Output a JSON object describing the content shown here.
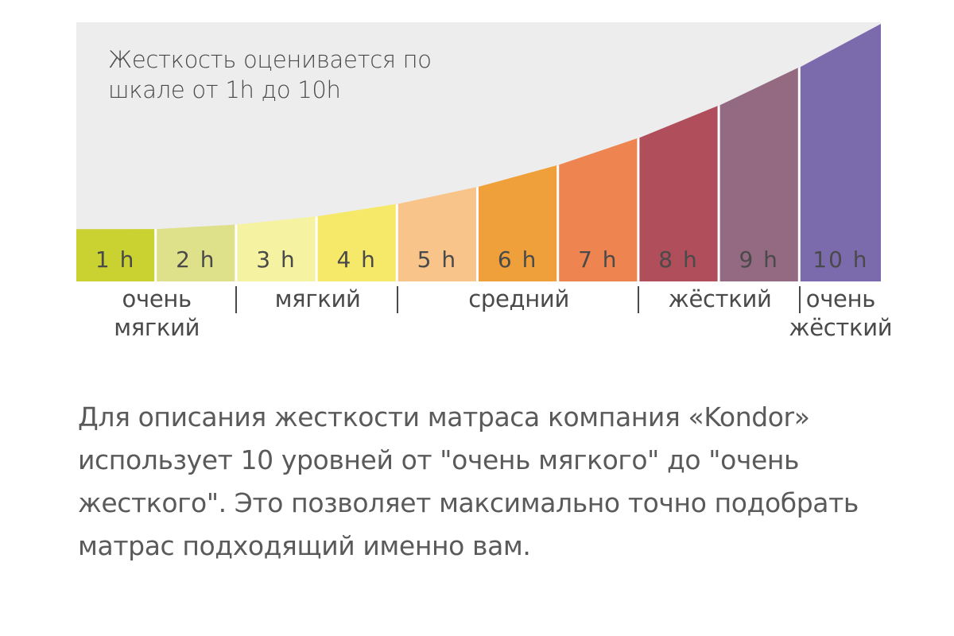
{
  "chart_data": {
    "type": "bar",
    "title_lines": [
      "Жесткость оценивается по",
      "шкале от 1h до 10h"
    ],
    "categories": [
      "1 h",
      "2 h",
      "3 h",
      "4 h",
      "5 h",
      "6 h",
      "7 h",
      "8 h",
      "9 h",
      "10 h"
    ],
    "values": [
      1,
      2,
      3,
      4,
      5,
      6,
      7,
      8,
      9,
      10
    ],
    "colors": [
      "#c9d230",
      "#dfe08a",
      "#f5f2a2",
      "#f6e96a",
      "#f8c489",
      "#f0a03a",
      "#ee844f",
      "#b04e5b",
      "#936a82",
      "#7b6bad"
    ],
    "curve_fill": "#ededed",
    "tick_text_color": "#4a4a4a",
    "groups": [
      {
        "label_lines": [
          "очень",
          "мягкий"
        ],
        "from": 1,
        "to": 2
      },
      {
        "label_lines": [
          "мягкий"
        ],
        "from": 3,
        "to": 4
      },
      {
        "label_lines": [
          "средний"
        ],
        "from": 5,
        "to": 7
      },
      {
        "label_lines": [
          "жёсткий"
        ],
        "from": 8,
        "to": 9
      },
      {
        "label_lines": [
          "очень",
          "жёсткий"
        ],
        "from": 10,
        "to": 10
      }
    ]
  },
  "description_lines": [
    "Для описания жесткости матраса компания «Kondor»",
    "использует  10  уровней  от  \"очень мягкого\" до \"очень",
    "жесткого\". Это позволяет максимально точно подобрать",
    "матрас подходящий именно вам."
  ]
}
